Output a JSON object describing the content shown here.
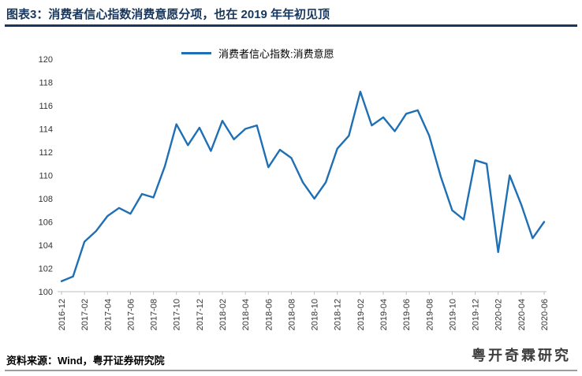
{
  "header": {
    "title": "图表3：消费者信心指数消费意愿分项，也在 2019 年年初见顶",
    "accent_color": "#17375E"
  },
  "chart_data": {
    "type": "line",
    "title": "",
    "xlabel": "",
    "ylabel": "",
    "ylim": [
      100,
      120
    ],
    "y_tick_step": 2,
    "x_label_every": 2,
    "grid": false,
    "legend_position": "top",
    "line_color": "#1F6FB5",
    "categories": [
      "2016-12",
      "2017-01",
      "2017-02",
      "2017-03",
      "2017-04",
      "2017-05",
      "2017-06",
      "2017-07",
      "2017-08",
      "2017-09",
      "2017-10",
      "2017-11",
      "2017-12",
      "2018-01",
      "2018-02",
      "2018-03",
      "2018-04",
      "2018-05",
      "2018-06",
      "2018-07",
      "2018-08",
      "2018-09",
      "2018-10",
      "2018-11",
      "2018-12",
      "2019-01",
      "2019-02",
      "2019-03",
      "2019-04",
      "2019-05",
      "2019-06",
      "2019-07",
      "2019-08",
      "2019-09",
      "2019-10",
      "2019-11",
      "2019-12",
      "2020-01",
      "2020-02",
      "2020-03",
      "2020-04",
      "2020-05",
      "2020-06"
    ],
    "series": [
      {
        "name": "消费者信心指数:消费意愿",
        "values": [
          100.9,
          101.3,
          104.3,
          105.2,
          106.5,
          107.2,
          106.7,
          108.4,
          108.1,
          110.8,
          114.4,
          112.6,
          114.1,
          112.1,
          114.7,
          113.1,
          114.0,
          114.3,
          110.7,
          112.2,
          111.5,
          109.4,
          108.0,
          109.4,
          112.3,
          113.4,
          117.2,
          114.3,
          115.0,
          113.8,
          115.3,
          115.6,
          113.4,
          109.9,
          107.0,
          106.2,
          111.3,
          111.0,
          103.4,
          110.0,
          107.5,
          104.6,
          106.0
        ]
      }
    ],
    "y_tick_labels": [
      "100",
      "102",
      "104",
      "106",
      "108",
      "110",
      "112",
      "114",
      "116",
      "118",
      "120"
    ],
    "x_tick_labels": [
      "2016-12",
      "2017-02",
      "2017-04",
      "2017-06",
      "2017-08",
      "2017-10",
      "2017-12",
      "2018-02",
      "2018-04",
      "2018-06",
      "2018-08",
      "2018-10",
      "2018-12",
      "2019-02",
      "2019-04",
      "2019-06",
      "2019-08",
      "2019-10",
      "2019-12",
      "2020-02",
      "2020-04",
      "2020-06"
    ]
  },
  "footer": {
    "source": "资料来源：Wind，粤开证券研究院",
    "logo": "粤开奇霖研究"
  }
}
